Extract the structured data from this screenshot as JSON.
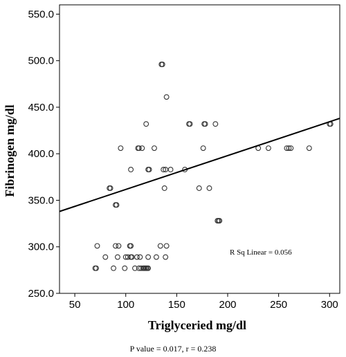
{
  "chart_data": {
    "type": "scatter",
    "xlabel": "Triglyceried mg/dl",
    "ylabel": "Fibrinogen mg/dl",
    "xlim": [
      35,
      310
    ],
    "ylim": [
      250,
      560
    ],
    "x_ticks": [
      50,
      100,
      150,
      200,
      250,
      300
    ],
    "x_tick_labels": [
      "50",
      "100",
      "150",
      "200",
      "250",
      "300"
    ],
    "y_ticks": [
      250,
      300,
      350,
      400,
      450,
      500,
      550
    ],
    "y_tick_labels": [
      "250.0",
      "300.0",
      "350.0",
      "400.0",
      "450.0",
      "500.0",
      "550.0"
    ],
    "grid": false,
    "points": [
      {
        "x": 70,
        "y": 277
      },
      {
        "x": 71,
        "y": 277
      },
      {
        "x": 72,
        "y": 301
      },
      {
        "x": 80,
        "y": 289
      },
      {
        "x": 84,
        "y": 363
      },
      {
        "x": 85,
        "y": 363
      },
      {
        "x": 88,
        "y": 277
      },
      {
        "x": 90,
        "y": 301
      },
      {
        "x": 90,
        "y": 345
      },
      {
        "x": 91,
        "y": 345
      },
      {
        "x": 92,
        "y": 289
      },
      {
        "x": 93,
        "y": 301
      },
      {
        "x": 95,
        "y": 406
      },
      {
        "x": 99,
        "y": 277
      },
      {
        "x": 100,
        "y": 289
      },
      {
        "x": 102,
        "y": 289
      },
      {
        "x": 104,
        "y": 301
      },
      {
        "x": 105,
        "y": 301
      },
      {
        "x": 105,
        "y": 289
      },
      {
        "x": 106,
        "y": 289
      },
      {
        "x": 105,
        "y": 383
      },
      {
        "x": 109,
        "y": 277
      },
      {
        "x": 111,
        "y": 289
      },
      {
        "x": 112,
        "y": 406
      },
      {
        "x": 113,
        "y": 406
      },
      {
        "x": 113,
        "y": 277
      },
      {
        "x": 114,
        "y": 289
      },
      {
        "x": 115,
        "y": 277
      },
      {
        "x": 116,
        "y": 406
      },
      {
        "x": 117,
        "y": 277
      },
      {
        "x": 118,
        "y": 277
      },
      {
        "x": 119,
        "y": 277
      },
      {
        "x": 120,
        "y": 432
      },
      {
        "x": 120,
        "y": 277
      },
      {
        "x": 121,
        "y": 277
      },
      {
        "x": 122,
        "y": 383
      },
      {
        "x": 122,
        "y": 277
      },
      {
        "x": 122,
        "y": 289
      },
      {
        "x": 123,
        "y": 383
      },
      {
        "x": 128,
        "y": 406
      },
      {
        "x": 130,
        "y": 289
      },
      {
        "x": 134,
        "y": 301
      },
      {
        "x": 135,
        "y": 496
      },
      {
        "x": 136,
        "y": 496
      },
      {
        "x": 137,
        "y": 383
      },
      {
        "x": 138,
        "y": 363
      },
      {
        "x": 139,
        "y": 289
      },
      {
        "x": 139,
        "y": 383
      },
      {
        "x": 140,
        "y": 461
      },
      {
        "x": 140,
        "y": 301
      },
      {
        "x": 144,
        "y": 383
      },
      {
        "x": 158,
        "y": 383
      },
      {
        "x": 162,
        "y": 432
      },
      {
        "x": 163,
        "y": 432
      },
      {
        "x": 172,
        "y": 363
      },
      {
        "x": 176,
        "y": 406
      },
      {
        "x": 177,
        "y": 432
      },
      {
        "x": 178,
        "y": 432
      },
      {
        "x": 182,
        "y": 363
      },
      {
        "x": 188,
        "y": 432
      },
      {
        "x": 190,
        "y": 328
      },
      {
        "x": 191,
        "y": 328
      },
      {
        "x": 192,
        "y": 328
      },
      {
        "x": 230,
        "y": 406
      },
      {
        "x": 240,
        "y": 406
      },
      {
        "x": 258,
        "y": 406
      },
      {
        "x": 260,
        "y": 406
      },
      {
        "x": 262,
        "y": 406
      },
      {
        "x": 280,
        "y": 406
      },
      {
        "x": 300,
        "y": 432
      },
      {
        "x": 301,
        "y": 432
      }
    ],
    "fit_line": {
      "x": [
        35,
        310
      ],
      "y": [
        338,
        438
      ]
    },
    "annotation": "R Sq Linear = 0.056",
    "footer": "P value = 0.017, r = 0.238"
  }
}
